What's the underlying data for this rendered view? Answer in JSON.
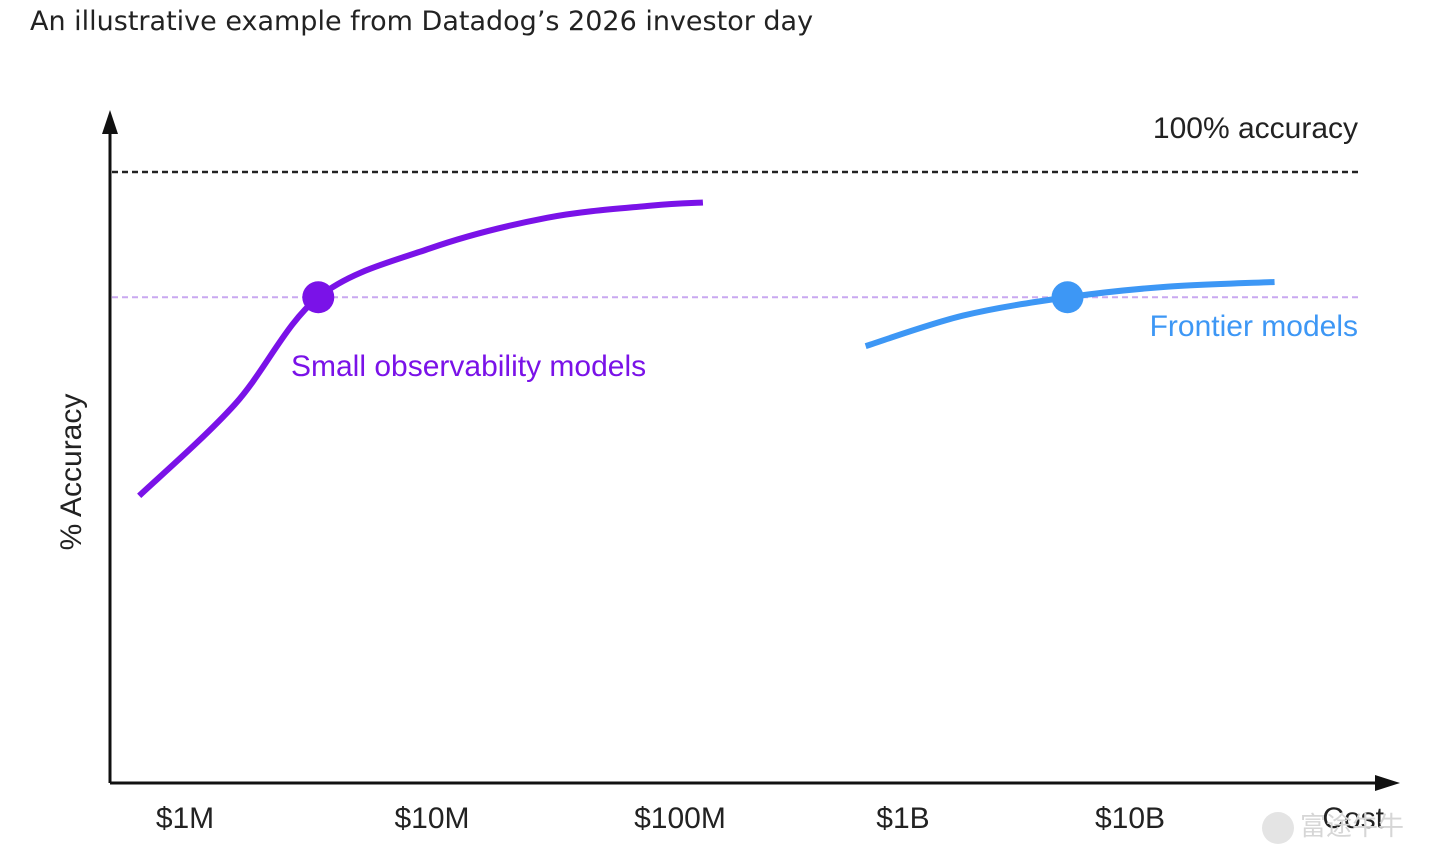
{
  "subtitle": "An illustrative example from Datadog’s 2026 investor day",
  "watermark": "富途牛牛",
  "chart_data": {
    "type": "line",
    "title": "",
    "xlabel": "Cost",
    "ylabel": "% Accuracy",
    "x_scale": "log",
    "categories": [
      "$1M",
      "$10M",
      "$100M",
      "$1B",
      "$10B"
    ],
    "xlim": [
      "$650K",
      "$27B"
    ],
    "ylim": [
      0,
      100
    ],
    "grid": false,
    "reference_lines": [
      {
        "label": "100% accuracy",
        "y": 100,
        "style": "dashed",
        "color": "#222222"
      },
      {
        "label": "",
        "y": 79.5,
        "style": "dashed",
        "color": "#c9a8f0"
      }
    ],
    "series": [
      {
        "name": "Small observability models",
        "color": "#7a12e8",
        "points": [
          {
            "x": 650000,
            "y": 47
          },
          {
            "x": 1600000,
            "y": 62
          },
          {
            "x": 3500000,
            "y": 79.5
          },
          {
            "x": 10000000,
            "y": 87.5
          },
          {
            "x": 30000000,
            "y": 92.5
          },
          {
            "x": 80000000,
            "y": 94.5
          },
          {
            "x": 130000000,
            "y": 95
          }
        ],
        "highlight": {
          "x": 3500000,
          "y": 79.5
        }
      },
      {
        "name": "Frontier models",
        "color": "#3d97f5",
        "points": [
          {
            "x": 600000000,
            "y": 71.5
          },
          {
            "x": 1500000000,
            "y": 76.5
          },
          {
            "x": 4000000000,
            "y": 79.5
          },
          {
            "x": 10000000000,
            "y": 81.2
          },
          {
            "x": 28000000000,
            "y": 82
          }
        ],
        "highlight": {
          "x": 4000000000,
          "y": 79.5
        }
      }
    ]
  }
}
